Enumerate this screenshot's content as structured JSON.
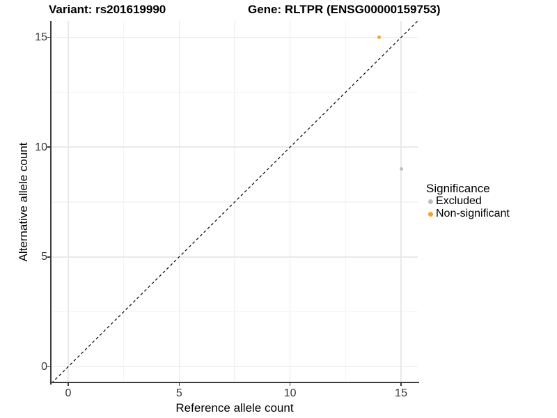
{
  "titles": {
    "left": "Variant: rs201619990",
    "right": "Gene: RLTPR (ENSG00000159753)"
  },
  "chart_data": {
    "type": "scatter",
    "title_left": "Variant: rs201619990",
    "title_right": "Gene: RLTPR (ENSG00000159753)",
    "xlabel": "Reference allele count",
    "ylabel": "Alternative allele count",
    "xlim": [
      -0.75,
      15.75
    ],
    "ylim": [
      -0.75,
      15.75
    ],
    "x_ticks": [
      0,
      5,
      10,
      15
    ],
    "y_ticks": [
      0,
      5,
      10,
      15
    ],
    "x_minor_ticks": [
      2.5,
      7.5,
      12.5
    ],
    "y_minor_ticks": [
      2.5,
      7.5,
      12.5
    ],
    "grid": "major and minor gridlines, light gray on white",
    "legend_position": "right",
    "series": [
      {
        "name": "Excluded",
        "color": "#BDBDBD",
        "points": [
          {
            "x": 15,
            "y": 9
          }
        ]
      },
      {
        "name": "Non-significant",
        "color": "#F9A02B",
        "points": [
          {
            "x": 14,
            "y": 15
          }
        ]
      }
    ],
    "reference_line": {
      "style": "dashed",
      "color": "#000000",
      "slope": 1,
      "intercept": 0,
      "description": "y = x identity line"
    },
    "legend": {
      "title": "Significance",
      "entries": [
        {
          "label": "Excluded",
          "color": "#BDBDBD"
        },
        {
          "label": "Non-significant",
          "color": "#F9A02B"
        }
      ]
    }
  },
  "colors": {
    "axis_line": "#3C3C3C",
    "tick_label": "#333333",
    "grid_major": "#E9E9E9",
    "grid_minor": "#F4F4F4",
    "background": "#FFFFFF"
  }
}
